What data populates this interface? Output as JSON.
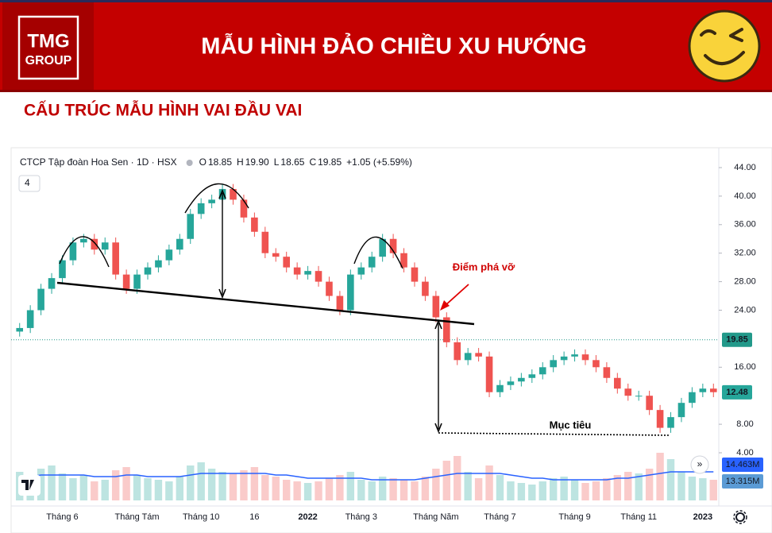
{
  "header": {
    "logo_line1": "TMG",
    "logo_line2": "GROUP",
    "title": "MẪU HÌNH ĐẢO CHIỀU XU HƯỚNG"
  },
  "subtitle": "CẤU TRÚC MẪU HÌNH VAI ĐẦU VAI",
  "chart_data": {
    "type": "candlestick",
    "title": "CTCP Tập đoàn Hoa Sen · 1D · HSX",
    "indicator_count": "4",
    "ohlc_legend": [
      {
        "key": "O",
        "value": "18.85"
      },
      {
        "key": "H",
        "value": "19.90"
      },
      {
        "key": "L",
        "value": "18.65"
      },
      {
        "key": "C",
        "value": "19.85"
      }
    ],
    "change": "+1.05 (+5.59%)",
    "categories": [
      null,
      null,
      null,
      null,
      "Tháng 6",
      null,
      null,
      null,
      null,
      null,
      null,
      "Tháng Tám",
      null,
      null,
      null,
      null,
      null,
      "Tháng 10",
      null,
      null,
      null,
      null,
      "16",
      null,
      null,
      null,
      null,
      "2022",
      null,
      null,
      null,
      null,
      "Tháng 3",
      null,
      null,
      null,
      null,
      null,
      null,
      "Tháng Năm",
      null,
      null,
      null,
      null,
      null,
      "Tháng 7",
      null,
      null,
      null,
      null,
      null,
      null,
      "Tháng 9",
      null,
      null,
      null,
      null,
      null,
      "Tháng 11",
      null,
      null,
      null,
      null,
      null,
      "2023",
      null
    ],
    "open": [
      21,
      21.5,
      24,
      27,
      28.5,
      31,
      33.5,
      34,
      32.5,
      33.5,
      29,
      27,
      29,
      30,
      31,
      32.5,
      34,
      37.5,
      39,
      39.5,
      41,
      39.5,
      37,
      35,
      32,
      31.5,
      30,
      29,
      29.5,
      28,
      26,
      24,
      29,
      30,
      31.5,
      34,
      32,
      30,
      28,
      26,
      23,
      19.5,
      17,
      18,
      17.5,
      12.5,
      13.5,
      14,
      14.5,
      15,
      16,
      17,
      17.5,
      17.8,
      17,
      16,
      14.5,
      13,
      12,
      12,
      10,
      7.5,
      9,
      11,
      12.5,
      13
    ],
    "high": [
      22.2,
      24.7,
      27.7,
      29.2,
      31.7,
      34.2,
      34.7,
      34.7,
      34.2,
      34.2,
      29.7,
      29.7,
      30.7,
      31.7,
      33.2,
      34.7,
      38.2,
      39.7,
      40.2,
      41.7,
      41.7,
      40.2,
      37.7,
      35.7,
      32.7,
      32.2,
      30.7,
      30.2,
      30.2,
      28.7,
      26.7,
      29.7,
      30.7,
      32.2,
      34.7,
      34.7,
      32.7,
      30.7,
      28.7,
      26.7,
      23.7,
      20.2,
      18.7,
      18.7,
      18.2,
      14.2,
      14.7,
      15.2,
      15.7,
      16.7,
      17.7,
      18.2,
      18.5,
      18.5,
      17.7,
      16.7,
      15.2,
      13.7,
      12.7,
      12.7,
      10.7,
      9.7,
      11.7,
      13.2,
      13.7,
      13.7
    ],
    "low": [
      20.3,
      20.8,
      23.3,
      26.3,
      27.8,
      30.3,
      32.8,
      31.8,
      31.8,
      28.3,
      26.3,
      26.3,
      28.3,
      29.3,
      30.3,
      31.8,
      33.3,
      36.8,
      38.3,
      38.8,
      38.8,
      36.3,
      34.3,
      31.3,
      30.8,
      29.3,
      28.3,
      28.3,
      27.3,
      25.3,
      23.3,
      23.3,
      28.3,
      29.3,
      30.8,
      31.3,
      29.3,
      27.3,
      25.3,
      22.3,
      18.8,
      16.3,
      16.3,
      16.8,
      11.8,
      11.8,
      12.8,
      13.3,
      13.8,
      14.3,
      15.3,
      16.3,
      16.8,
      16.3,
      15.3,
      13.8,
      12.3,
      11.3,
      11.3,
      9.3,
      6.8,
      6.8,
      8.3,
      10.3,
      11.8,
      11.8
    ],
    "close": [
      21.5,
      24,
      27,
      28.5,
      31,
      33.5,
      34,
      32.5,
      33.5,
      29,
      27,
      29,
      30,
      31,
      32.5,
      34,
      37.5,
      39,
      39.5,
      41,
      39.5,
      37,
      35,
      32,
      31.5,
      30,
      29,
      29.5,
      28,
      26,
      24,
      29,
      30,
      31.5,
      34,
      32,
      30,
      28,
      26,
      23,
      19.5,
      17,
      18,
      17.5,
      12.5,
      13.5,
      14,
      14.5,
      15,
      16,
      17,
      17.5,
      17.8,
      17,
      16,
      14.5,
      13,
      12,
      12,
      10,
      7.5,
      9,
      11,
      12.5,
      13,
      12.5
    ],
    "up_color": "#26a69a",
    "down_color": "#ef5350",
    "ylim": [
      4,
      44
    ],
    "yticks": [
      {
        "value": 44,
        "label": "44.00"
      },
      {
        "value": 40,
        "label": "40.00"
      },
      {
        "value": 36,
        "label": "36.00"
      },
      {
        "value": 32,
        "label": "32.00"
      },
      {
        "value": 28,
        "label": "28.00"
      },
      {
        "value": 24,
        "label": "24.00"
      },
      {
        "value": 16,
        "label": "16.00"
      },
      {
        "value": 8,
        "label": "8.00"
      },
      {
        "value": 4,
        "label": "4.00"
      }
    ],
    "price_markers": [
      {
        "value": 19.85,
        "label": "19.85",
        "color": "#22998a"
      },
      {
        "value": 12.48,
        "label": "12.48",
        "color": "#26a69a"
      }
    ],
    "volume": [
      18,
      15,
      20,
      22,
      17,
      14,
      16,
      12,
      13,
      19,
      21,
      16,
      14,
      13,
      12,
      15,
      22,
      24,
      20,
      18,
      17,
      19,
      21,
      16,
      15,
      13,
      12,
      11,
      12,
      14,
      16,
      18,
      13,
      12,
      15,
      14,
      13,
      12,
      15,
      20,
      25,
      28,
      18,
      14,
      22,
      16,
      12,
      11,
      10,
      12,
      14,
      15,
      13,
      11,
      12,
      14,
      16,
      18,
      17,
      20,
      30,
      26,
      18,
      15,
      14,
      13
    ],
    "volume_ma": [
      15,
      15,
      16,
      16,
      16,
      16,
      16,
      15,
      15,
      15,
      16,
      16,
      15,
      15,
      15,
      15,
      16,
      17,
      17,
      17,
      17,
      17,
      17,
      17,
      16,
      16,
      15,
      14,
      14,
      14,
      14,
      14,
      14,
      13,
      13,
      13,
      13,
      13,
      14,
      15,
      16,
      17,
      17,
      17,
      17,
      17,
      16,
      15,
      14,
      14,
      13,
      13,
      13,
      13,
      13,
      13,
      14,
      14,
      15,
      16,
      17,
      18,
      18,
      18,
      18,
      18
    ],
    "volume_ma_color": "#2962ff",
    "volume_lim": [
      0,
      40
    ],
    "volume_labels": [
      {
        "label": "14.463M",
        "color": "#2962ff"
      },
      {
        "label": "13.315M",
        "color": "#5b9bd5"
      }
    ],
    "annotations": {
      "breakout": "Điểm phá vỡ",
      "target": "Mục tiêu"
    }
  }
}
